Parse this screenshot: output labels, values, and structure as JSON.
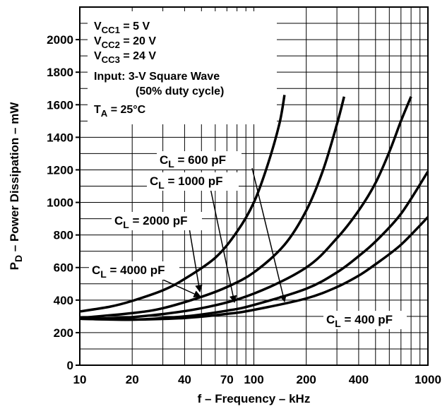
{
  "chart_data": {
    "type": "line",
    "xlabel": "f – Frequency – kHz",
    "ylabel_parts": [
      "P",
      "D",
      " – Power Dissipation – mW"
    ],
    "xscale": "log",
    "xlim": [
      10,
      1000
    ],
    "ylim": [
      0,
      2200
    ],
    "grid": true,
    "x_ticks": [
      10,
      20,
      40,
      70,
      100,
      200,
      400,
      1000
    ],
    "y_ticks": [
      0,
      200,
      400,
      600,
      800,
      1000,
      1200,
      1400,
      1600,
      1800,
      2000
    ],
    "conditions": [
      {
        "parts": [
          "V",
          "CC1",
          " = 5 V"
        ]
      },
      {
        "parts": [
          "V",
          "CC2",
          " = 20 V"
        ]
      },
      {
        "parts": [
          "V",
          "CC3",
          " = 24 V"
        ]
      },
      {
        "parts": [
          "Input: 3-V Square Wave",
          "",
          ""
        ]
      },
      {
        "parts": [
          "(50% duty cycle)",
          "",
          ""
        ],
        "indent": true
      },
      {
        "parts": [
          "T",
          "A",
          " = 25°C"
        ]
      }
    ],
    "series": [
      {
        "name": "C_L = 4000 pF",
        "label_parts": [
          "C",
          "L",
          " = 4000 pF"
        ],
        "x": [
          10,
          15,
          20,
          30,
          40,
          60,
          80,
          100,
          120,
          140,
          150
        ],
        "y": [
          330,
          360,
          395,
          460,
          530,
          660,
          820,
          1000,
          1230,
          1480,
          1660
        ]
      },
      {
        "name": "C_L = 2000 pF",
        "label_parts": [
          "C",
          "L",
          " = 2000 pF"
        ],
        "x": [
          10,
          20,
          30,
          50,
          70,
          100,
          150,
          200,
          250,
          300,
          330
        ],
        "y": [
          290,
          320,
          350,
          420,
          480,
          570,
          740,
          950,
          1200,
          1480,
          1650
        ]
      },
      {
        "name": "C_L = 1000 pF",
        "label_parts": [
          "C",
          "L",
          " = 1000 pF"
        ],
        "x": [
          10,
          20,
          50,
          100,
          200,
          300,
          400,
          500,
          600,
          700,
          800
        ],
        "y": [
          285,
          295,
          350,
          440,
          600,
          780,
          950,
          1120,
          1310,
          1500,
          1650
        ]
      },
      {
        "name": "C_L = 600 pF",
        "label_parts": [
          "C",
          "L",
          " = 600 pF"
        ],
        "x": [
          10,
          20,
          40,
          70,
          100,
          200,
          300,
          400,
          500,
          700,
          1000
        ],
        "y": [
          285,
          280,
          300,
          335,
          370,
          470,
          570,
          670,
          760,
          930,
          1190
        ]
      },
      {
        "name": "C_L = 400 pF",
        "label_parts": [
          "C",
          "L",
          " = 400 pF"
        ],
        "x": [
          10,
          20,
          40,
          70,
          100,
          200,
          300,
          400,
          500,
          700,
          1000
        ],
        "y": [
          285,
          280,
          290,
          315,
          340,
          410,
          480,
          550,
          620,
          740,
          910
        ]
      }
    ]
  }
}
